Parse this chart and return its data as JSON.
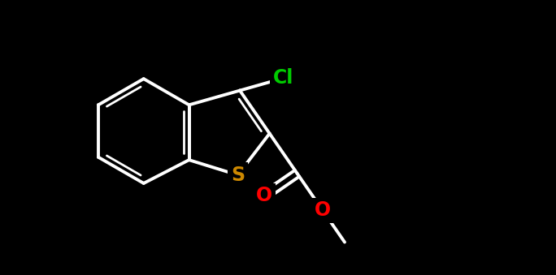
{
  "bg_color": "#000000",
  "bond_color": "#ffffff",
  "bond_width": 2.8,
  "Cl_color": "#00cc00",
  "S_color": "#cc8800",
  "O_color": "#ff0000",
  "C_color": "#ffffff",
  "font_size": 15,
  "fig_width": 6.84,
  "fig_height": 3.39,
  "dpi": 100,
  "xlim": [
    0,
    10
  ],
  "ylim": [
    0,
    5
  ]
}
